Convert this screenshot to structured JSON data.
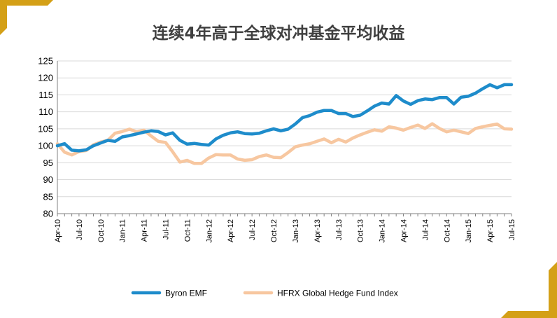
{
  "title": "连续4年高于全球对冲基金平均收益",
  "colors": {
    "accent_gold": "#D4A017",
    "byron": "#1E8CCB",
    "hfrx": "#F7C7A0",
    "grid": "#D9D9D9"
  },
  "chart_data": {
    "type": "line",
    "title": "连续4年高于全球对冲基金平均收益",
    "xlabel": "",
    "ylabel": "",
    "ylim": [
      80,
      125
    ],
    "y_ticks": [
      "80",
      "85",
      "90",
      "95",
      "100",
      "105",
      "110",
      "115",
      "120",
      "125"
    ],
    "grid": "horizontal",
    "legend_position": "bottom",
    "x_tick_labels": [
      "Apr-10",
      "Jul-10",
      "Oct-10",
      "Jan-11",
      "Apr-11",
      "Jul-11",
      "Oct-11",
      "Jan-12",
      "Apr-12",
      "Jul-12",
      "Oct-12",
      "Jan-13",
      "Apr-13",
      "Jul-13",
      "Oct-13",
      "Jan-14",
      "Apr-14",
      "Jul-14",
      "Oct-14",
      "Jan-15",
      "Apr-15",
      "Jul-15"
    ],
    "x": [
      "Apr-10",
      "May-10",
      "Jun-10",
      "Jul-10",
      "Aug-10",
      "Sep-10",
      "Oct-10",
      "Nov-10",
      "Dec-10",
      "Jan-11",
      "Feb-11",
      "Mar-11",
      "Apr-11",
      "May-11",
      "Jun-11",
      "Jul-11",
      "Aug-11",
      "Sep-11",
      "Oct-11",
      "Nov-11",
      "Dec-11",
      "Jan-12",
      "Feb-12",
      "Mar-12",
      "Apr-12",
      "May-12",
      "Jun-12",
      "Jul-12",
      "Aug-12",
      "Sep-12",
      "Oct-12",
      "Nov-12",
      "Dec-12",
      "Jan-13",
      "Feb-13",
      "Mar-13",
      "Apr-13",
      "May-13",
      "Jun-13",
      "Jul-13",
      "Aug-13",
      "Sep-13",
      "Oct-13",
      "Nov-13",
      "Dec-13",
      "Jan-14",
      "Feb-14",
      "Mar-14",
      "Apr-14",
      "May-14",
      "Jun-14",
      "Jul-14",
      "Aug-14",
      "Sep-14",
      "Oct-14",
      "Nov-14",
      "Dec-14",
      "Jan-15",
      "Feb-15",
      "Mar-15",
      "Apr-15",
      "May-15",
      "Jun-15",
      "Jul-15"
    ],
    "series": [
      {
        "name": "Byron EMF",
        "values": [
          100.0,
          100.6,
          98.7,
          98.5,
          98.8,
          100.0,
          100.8,
          101.6,
          101.3,
          102.6,
          103.0,
          103.5,
          104.0,
          104.4,
          104.2,
          103.2,
          103.8,
          101.6,
          100.5,
          100.7,
          100.4,
          100.2,
          102.0,
          103.1,
          103.8,
          104.1,
          103.6,
          103.5,
          103.7,
          104.4,
          105.0,
          104.4,
          104.9,
          106.4,
          108.3,
          108.9,
          109.9,
          110.4,
          110.4,
          109.5,
          109.5,
          108.6,
          109.0,
          110.3,
          111.7,
          112.6,
          112.3,
          114.8,
          113.2,
          112.2,
          113.3,
          113.8,
          113.6,
          114.2,
          114.2,
          112.3,
          114.3,
          114.6,
          115.5,
          116.8,
          118.0,
          117.1,
          118.0,
          118.0
        ]
      },
      {
        "name": "HFRX Global Hedge Fund Index",
        "values": [
          100.6,
          98.1,
          97.3,
          98.3,
          98.6,
          100.3,
          101.1,
          101.6,
          103.7,
          104.2,
          104.9,
          104.1,
          104.6,
          102.9,
          101.3,
          101.0,
          98.2,
          95.2,
          95.7,
          94.8,
          94.8,
          96.4,
          97.4,
          97.3,
          97.3,
          96.1,
          95.7,
          95.9,
          96.8,
          97.3,
          96.6,
          96.5,
          98.0,
          99.7,
          100.2,
          100.6,
          101.3,
          102.0,
          100.9,
          101.9,
          101.1,
          102.3,
          103.2,
          104.0,
          104.7,
          104.3,
          105.6,
          105.2,
          104.6,
          105.4,
          106.1,
          105.1,
          106.5,
          105.1,
          104.1,
          104.6,
          104.1,
          103.6,
          105.1,
          105.6,
          106.0,
          106.4,
          105.0,
          104.9
        ]
      }
    ]
  }
}
